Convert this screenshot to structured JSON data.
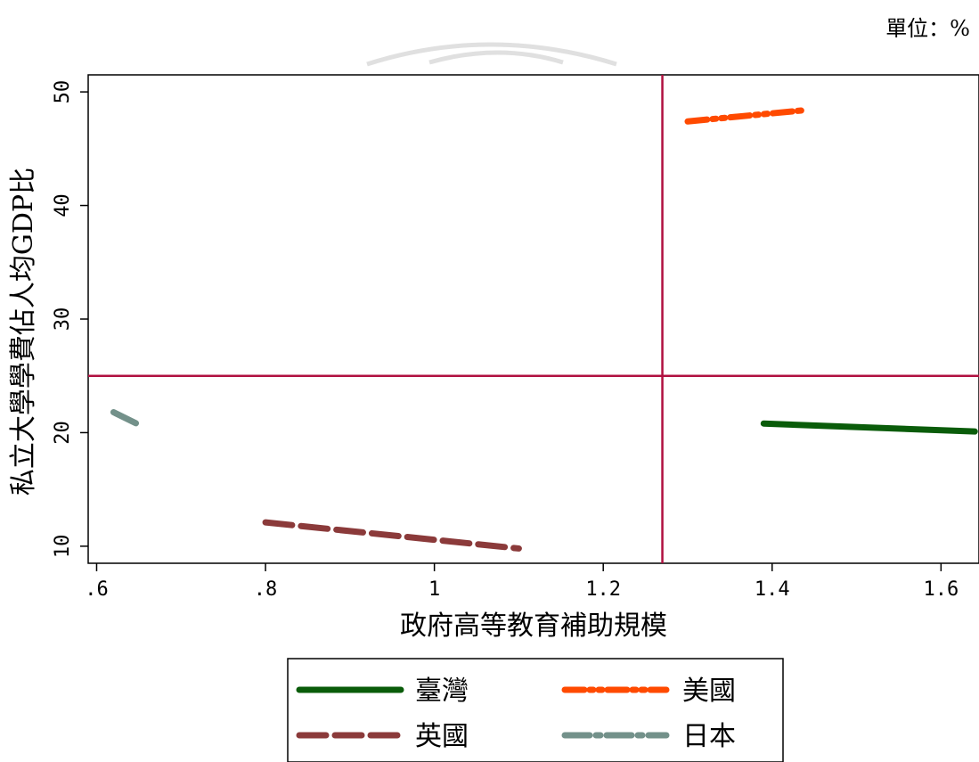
{
  "unit_label": "單位：%",
  "chart_data": {
    "type": "line",
    "title": "",
    "xlabel": "政府高等教育補助規模",
    "ylabel": "私立大學學費佔人均GDP比",
    "xlim": [
      0.59,
      1.645
    ],
    "ylim": [
      8.5,
      51.5
    ],
    "x_ticks": [
      0.6,
      0.8,
      1.0,
      1.2,
      1.4,
      1.6
    ],
    "x_tick_labels": [
      ".6",
      ".8",
      "1",
      "1.2",
      "1.4",
      "1.6"
    ],
    "y_ticks": [
      10,
      20,
      30,
      40,
      50
    ],
    "y_tick_labels": [
      "10",
      "20",
      "30",
      "40",
      "50"
    ],
    "grid": false,
    "reference_lines": {
      "x": 1.27,
      "y": 25,
      "color": "#b01040"
    },
    "legend_position": "bottom",
    "series": [
      {
        "name": "臺灣",
        "color": "#0a5c0a",
        "dash": "solid",
        "x": [
          1.39,
          1.64
        ],
        "y": [
          20.8,
          20.1
        ]
      },
      {
        "name": "美國",
        "color": "#ff4a00",
        "dash": "dash-dot-dot",
        "x": [
          1.3,
          1.44
        ],
        "y": [
          47.4,
          48.4
        ]
      },
      {
        "name": "英國",
        "color": "#8b3a3a",
        "dash": "dash",
        "x": [
          0.8,
          1.1
        ],
        "y": [
          12.1,
          9.8
        ]
      },
      {
        "name": "日本",
        "color": "#73918a",
        "dash": "long-dash-dot",
        "x": [
          0.62,
          0.65
        ],
        "y": [
          21.8,
          20.7
        ]
      }
    ]
  }
}
